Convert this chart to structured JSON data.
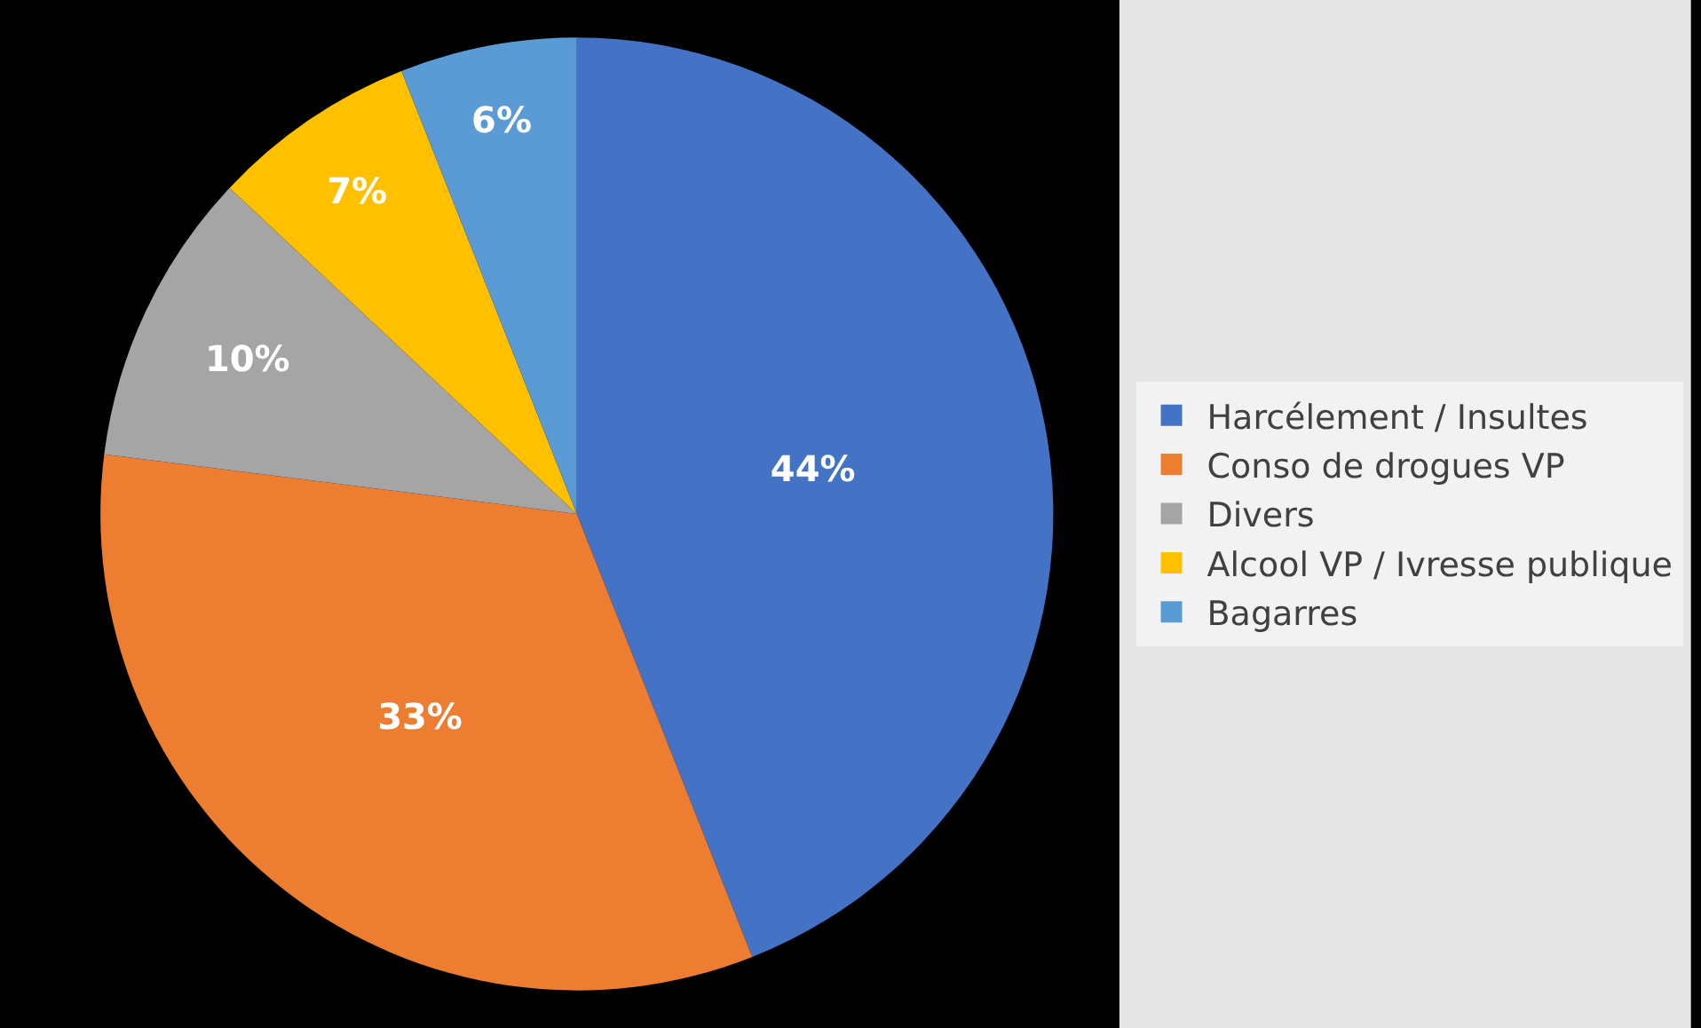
{
  "chart_data": {
    "type": "pie",
    "categories": [
      "Harcélement / Insultes",
      "Conso de drogues VP",
      "Divers",
      "Alcool VP / Ivresse publique",
      "Bagarres"
    ],
    "values": [
      44,
      33,
      10,
      7,
      6
    ],
    "colors": [
      "#4472c4",
      "#ed7d31",
      "#a5a5a5",
      "#ffc000",
      "#5b9bd5"
    ],
    "value_labels": [
      "44%",
      "33%",
      "10%",
      "7%",
      "6%"
    ],
    "legend": "right"
  }
}
